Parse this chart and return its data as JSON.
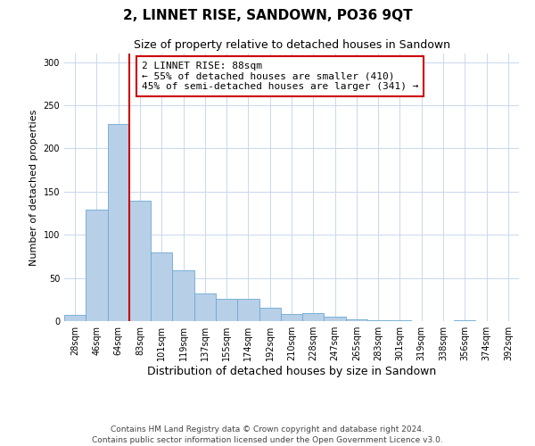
{
  "title": "2, LINNET RISE, SANDOWN, PO36 9QT",
  "subtitle": "Size of property relative to detached houses in Sandown",
  "xlabel": "Distribution of detached houses by size in Sandown",
  "ylabel": "Number of detached properties",
  "bar_labels": [
    "28sqm",
    "46sqm",
    "64sqm",
    "83sqm",
    "101sqm",
    "119sqm",
    "137sqm",
    "155sqm",
    "174sqm",
    "192sqm",
    "210sqm",
    "228sqm",
    "247sqm",
    "265sqm",
    "283sqm",
    "301sqm",
    "319sqm",
    "338sqm",
    "356sqm",
    "374sqm",
    "392sqm"
  ],
  "bar_values": [
    7,
    129,
    228,
    140,
    80,
    59,
    32,
    26,
    26,
    15,
    8,
    9,
    5,
    2,
    1,
    1,
    0,
    0,
    1,
    0,
    0
  ],
  "bar_color": "#b8cfe8",
  "bar_edge_color": "#6aaad4",
  "background_color": "#ffffff",
  "grid_color": "#c8d8ec",
  "property_line_color": "#cc0000",
  "annotation_text": "2 LINNET RISE: 88sqm\n← 55% of detached houses are smaller (410)\n45% of semi-detached houses are larger (341) →",
  "annotation_box_color": "#ffffff",
  "annotation_box_edge_color": "#cc0000",
  "ylim": [
    0,
    310
  ],
  "yticks": [
    0,
    50,
    100,
    150,
    200,
    250,
    300
  ],
  "footer_text": "Contains HM Land Registry data © Crown copyright and database right 2024.\nContains public sector information licensed under the Open Government Licence v3.0.",
  "title_fontsize": 11,
  "subtitle_fontsize": 9,
  "annotation_fontsize": 8,
  "footer_fontsize": 6.5,
  "ylabel_fontsize": 8,
  "xlabel_fontsize": 9,
  "tick_fontsize": 7
}
